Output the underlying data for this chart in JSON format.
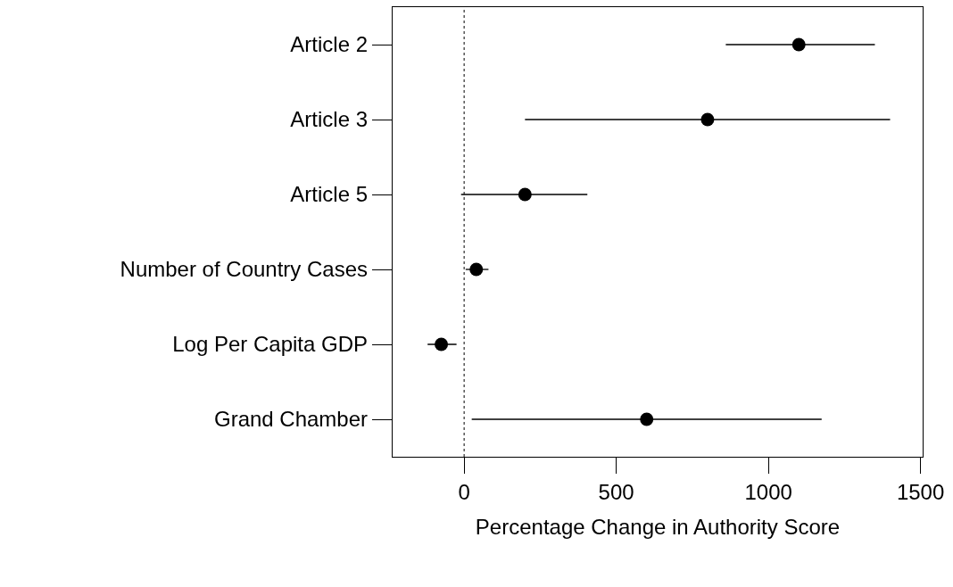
{
  "chart_data": {
    "type": "scatter",
    "xlabel": "Percentage Change in Authority Score",
    "categories": [
      "Article 2",
      "Article 3",
      "Article 5",
      "Number of Country Cases",
      "Log Per Capita GDP",
      "Grand Chamber"
    ],
    "orientation": "horizontal",
    "values": [
      1100,
      800,
      200,
      40,
      -75,
      600
    ],
    "errors": [
      [
        860,
        1350
      ],
      [
        200,
        1400
      ],
      [
        -10,
        405
      ],
      [
        5,
        80
      ],
      [
        -120,
        -25
      ],
      [
        25,
        1175
      ]
    ],
    "color": "#000000",
    "marker": "circle",
    "xlim": [
      -235,
      1507
    ],
    "xticks": [
      0,
      500,
      1000,
      1500
    ],
    "ref_lines": [
      {
        "axis": "x",
        "value": 0,
        "line_style": "dotted",
        "color": "#000000"
      }
    ]
  }
}
